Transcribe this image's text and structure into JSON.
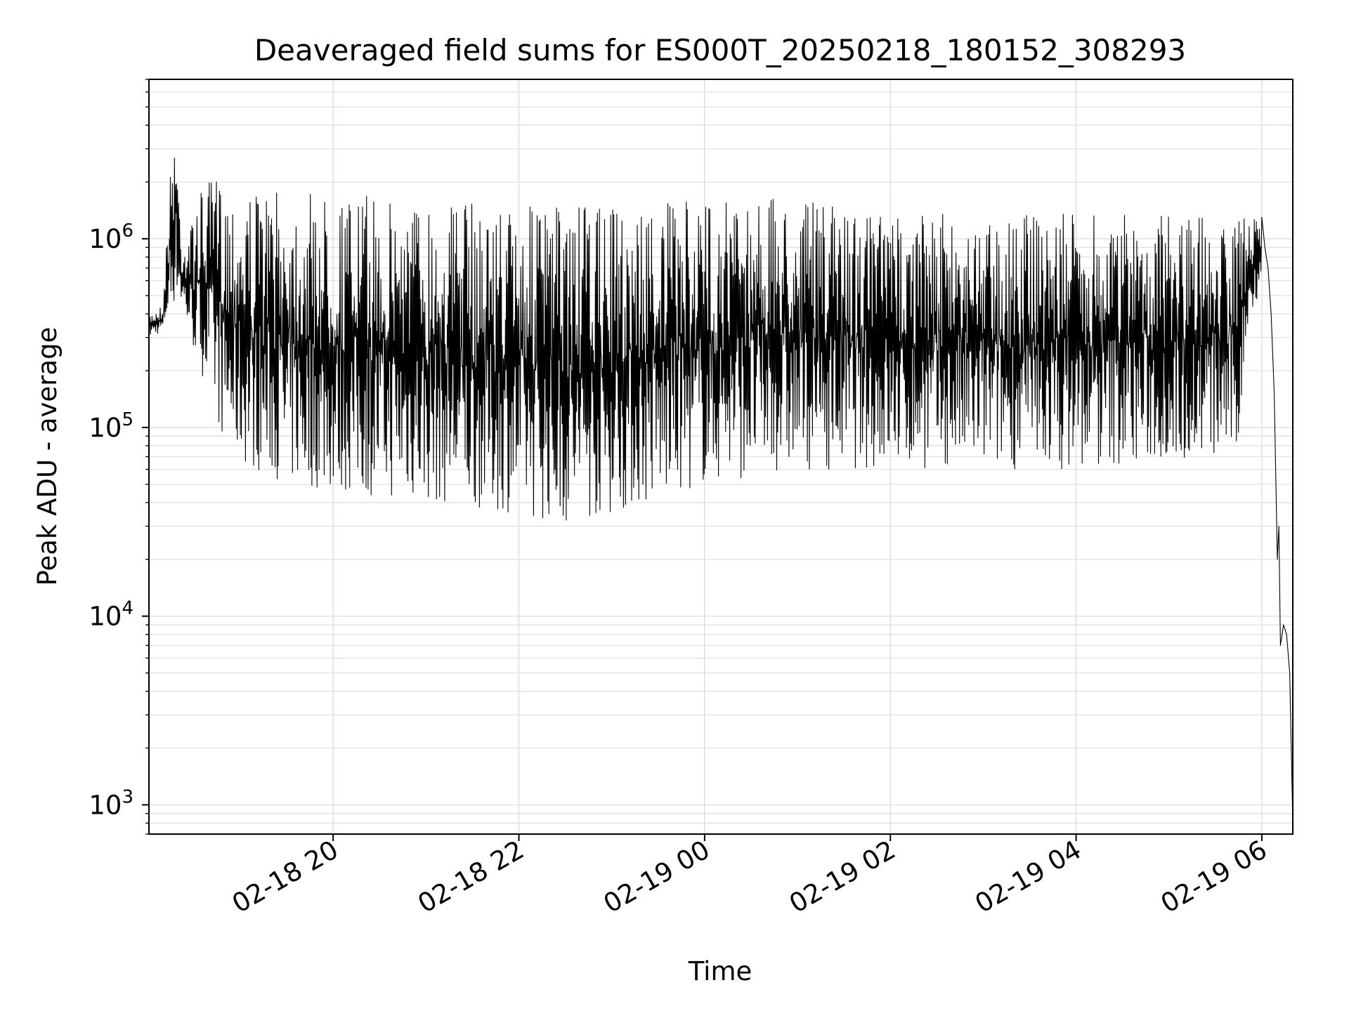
{
  "chart_data": {
    "type": "line",
    "title": "Deaveraged field sums for ES000T_20250218_180152_308293",
    "xlabel": "Time",
    "ylabel": "Peak ADU - average",
    "yscale": "log",
    "ylim": [
      700,
      7000000
    ],
    "xlim": [
      "2025-02-18 18:01",
      "2025-02-19 06:20"
    ],
    "grid": true,
    "line_color": "#000000",
    "grid_color": "#e0e0e0",
    "x_ticks": [
      {
        "value": "2025-02-18 20:00",
        "label": "02-18 20"
      },
      {
        "value": "2025-02-18 22:00",
        "label": "02-18 22"
      },
      {
        "value": "2025-02-19 00:00",
        "label": "02-19 00"
      },
      {
        "value": "2025-02-19 02:00",
        "label": "02-19 02"
      },
      {
        "value": "2025-02-19 04:00",
        "label": "02-19 04"
      },
      {
        "value": "2025-02-19 06:00",
        "label": "02-19 06"
      }
    ],
    "y_ticks": [
      {
        "value": 1000,
        "base": "10",
        "exp": "3"
      },
      {
        "value": 10000,
        "base": "10",
        "exp": "4"
      },
      {
        "value": 100000,
        "base": "10",
        "exp": "5"
      },
      {
        "value": 1000000,
        "base": "10",
        "exp": "6"
      }
    ],
    "series": [
      {
        "note_envelope": "high-frequency oscillation between lower and upper envelopes",
        "upper_envelope": [
          [
            "2025-02-18 18:01",
            400000
          ],
          [
            "2025-02-18 18:10",
            450000
          ],
          [
            "2025-02-18 18:14",
            1800000
          ],
          [
            "2025-02-18 18:16",
            3000000
          ],
          [
            "2025-02-18 18:18",
            4700000
          ],
          [
            "2025-02-18 18:22",
            1000000
          ],
          [
            "2025-02-18 18:28",
            1200000
          ],
          [
            "2025-02-18 18:35",
            1800000
          ],
          [
            "2025-02-18 18:45",
            2200000
          ],
          [
            "2025-02-18 19:00",
            1800000
          ],
          [
            "2025-02-18 19:30",
            1750000
          ],
          [
            "2025-02-18 20:00",
            1700000
          ],
          [
            "2025-02-18 21:00",
            1650000
          ],
          [
            "2025-02-18 22:00",
            1500000
          ],
          [
            "2025-02-18 23:00",
            1450000
          ],
          [
            "2025-02-19 00:00",
            1600000
          ],
          [
            "2025-02-19 00:30",
            1700000
          ],
          [
            "2025-02-19 01:00",
            1600000
          ],
          [
            "2025-02-19 01:30",
            1500000
          ],
          [
            "2025-02-19 02:00",
            1350000
          ],
          [
            "2025-02-19 03:00",
            1350000
          ],
          [
            "2025-02-19 04:00",
            1350000
          ],
          [
            "2025-02-19 05:00",
            1350000
          ],
          [
            "2025-02-19 05:55",
            1300000
          ],
          [
            "2025-02-19 06:00",
            1300000
          ]
        ],
        "lower_envelope": [
          [
            "2025-02-18 18:01",
            300000
          ],
          [
            "2025-02-18 18:10",
            320000
          ],
          [
            "2025-02-18 18:20",
            500000
          ],
          [
            "2025-02-18 18:30",
            250000
          ],
          [
            "2025-02-18 18:40",
            150000
          ],
          [
            "2025-02-18 18:50",
            80000
          ],
          [
            "2025-02-18 19:00",
            65000
          ],
          [
            "2025-02-18 19:30",
            50000
          ],
          [
            "2025-02-18 20:00",
            45000
          ],
          [
            "2025-02-18 21:00",
            40000
          ],
          [
            "2025-02-18 22:00",
            35000
          ],
          [
            "2025-02-18 22:30",
            30000
          ],
          [
            "2025-02-18 23:00",
            35000
          ],
          [
            "2025-02-18 23:30",
            40000
          ],
          [
            "2025-02-19 00:00",
            50000
          ],
          [
            "2025-02-19 00:30",
            55000
          ],
          [
            "2025-02-19 01:00",
            60000
          ],
          [
            "2025-02-19 02:00",
            60000
          ],
          [
            "2025-02-19 03:00",
            60000
          ],
          [
            "2025-02-19 04:00",
            60000
          ],
          [
            "2025-02-19 05:00",
            65000
          ],
          [
            "2025-02-19 05:45",
            70000
          ],
          [
            "2025-02-19 05:50",
            300000
          ],
          [
            "2025-02-19 06:00",
            600000
          ]
        ],
        "tail": [
          [
            "2025-02-19 06:00",
            1300000
          ],
          [
            "2025-02-19 06:02",
            900000
          ],
          [
            "2025-02-19 06:04",
            700000
          ],
          [
            "2025-02-19 06:06",
            400000
          ],
          [
            "2025-02-19 06:08",
            150000
          ],
          [
            "2025-02-19 06:10",
            20000
          ],
          [
            "2025-02-19 06:11",
            30000
          ],
          [
            "2025-02-19 06:12",
            7000
          ],
          [
            "2025-02-19 06:14",
            9000
          ],
          [
            "2025-02-19 06:16",
            8000
          ],
          [
            "2025-02-19 06:18",
            5000
          ],
          [
            "2025-02-19 06:20",
            800
          ]
        ]
      }
    ]
  }
}
